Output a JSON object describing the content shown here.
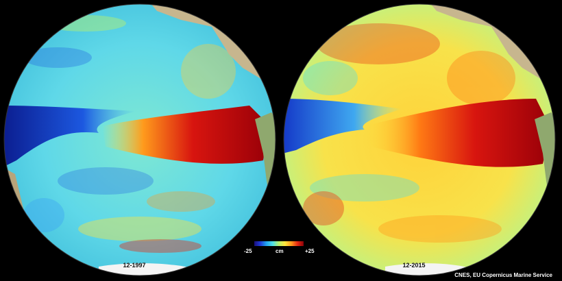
{
  "left_globe": {
    "date": "12-1997"
  },
  "right_globe": {
    "date": "12-2015"
  },
  "colorbar": {
    "min": "-25",
    "max": "+25",
    "unit": "cm"
  },
  "credit": "CNES, EU Copernicus Marine Service"
}
